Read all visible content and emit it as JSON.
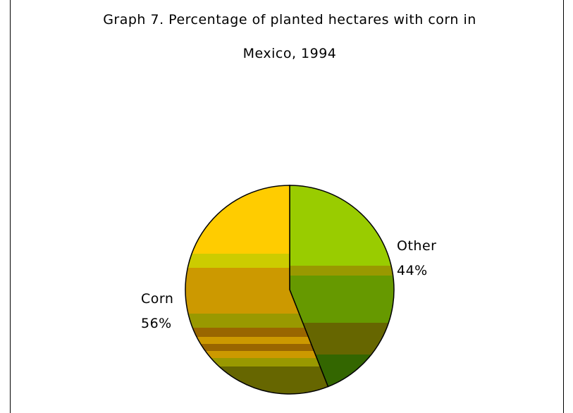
{
  "chart_data": {
    "type": "pie",
    "title": [
      "Graph 7. Percentage of planted hectares with corn in",
      "Mexico, 1994"
    ],
    "categories": [
      "Other",
      "Corn"
    ],
    "values": [
      44,
      56
    ],
    "value_labels": [
      "44%",
      "56%"
    ],
    "colors": [
      "#99cc00",
      "#ffcc00"
    ]
  }
}
